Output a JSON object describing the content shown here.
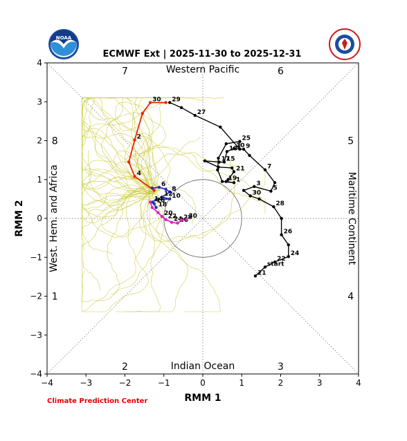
{
  "header": {
    "title": "ECMWF Ext | 2025-11-30 to 2025-12-31",
    "left_logo_text": "NOAA",
    "right_logo_text": "NATIONAL WEATHER SERVICE"
  },
  "footer": {
    "credit": "Climate Prediction Center"
  },
  "colors": {
    "ensemble": "#c8c832",
    "observed": "#000000",
    "forecast_week1": "#2233aa",
    "forecast_week2": "#e020c0",
    "forecast_week4": "#ee2200"
  },
  "chart_data": {
    "type": "line",
    "title": "ECMWF Ext | 2025-11-30 to 2025-12-31",
    "xlabel": "RMM 1",
    "ylabel": "RMM 2",
    "xlim": [
      -4,
      4
    ],
    "ylim": [
      -4,
      4
    ],
    "xticks": [
      "−4",
      "−3",
      "−2",
      "−1",
      "0",
      "1",
      "2",
      "3",
      "4"
    ],
    "yticks": [
      "−4",
      "−3",
      "−2",
      "−1",
      "0",
      "1",
      "2",
      "3",
      "4"
    ],
    "unit_circle_radius": 1,
    "region_labels": {
      "top": "Western Pacific",
      "bottom": "Indian Ocean",
      "left": "West. Hem. and Africa",
      "right": "Maritime Continent"
    },
    "phase_labels": [
      {
        "label": "1",
        "x": -3.8,
        "y": -2.0
      },
      {
        "label": "2",
        "x": -2.0,
        "y": -3.8
      },
      {
        "label": "3",
        "x": 2.0,
        "y": -3.8
      },
      {
        "label": "4",
        "x": 3.8,
        "y": -2.0
      },
      {
        "label": "5",
        "x": 3.8,
        "y": 2.0
      },
      {
        "label": "6",
        "x": 2.0,
        "y": 3.8
      },
      {
        "label": "7",
        "x": -2.0,
        "y": 3.8
      },
      {
        "label": "8",
        "x": -3.8,
        "y": 2.0
      }
    ],
    "ensemble_members": 51,
    "series": [
      {
        "id": "observed",
        "points": [
          {
            "x": 1.35,
            "y": -1.48,
            "label": "21"
          },
          {
            "x": 1.6,
            "y": -1.25,
            "label": "start"
          },
          {
            "x": 1.85,
            "y": -1.12,
            "label": "22"
          },
          {
            "x": 2.2,
            "y": -0.98,
            "label": "24"
          },
          {
            "x": 2.2,
            "y": -0.68
          },
          {
            "x": 2.02,
            "y": -0.42,
            "label": "26"
          },
          {
            "x": 2.02,
            "y": 0.0
          },
          {
            "x": 1.82,
            "y": 0.3,
            "label": "28"
          },
          {
            "x": 1.45,
            "y": 0.5
          },
          {
            "x": 1.22,
            "y": 0.58,
            "label": "30"
          },
          {
            "x": 1.05,
            "y": 0.72
          },
          {
            "x": 1.32,
            "y": 0.82,
            "label": "3"
          },
          {
            "x": 1.75,
            "y": 0.7,
            "label": "5"
          },
          {
            "x": 1.85,
            "y": 0.92
          },
          {
            "x": 1.6,
            "y": 1.25,
            "label": "7"
          },
          {
            "x": 1.2,
            "y": 1.62
          },
          {
            "x": 1.05,
            "y": 1.78,
            "label": "9"
          },
          {
            "x": 0.8,
            "y": 1.8,
            "label": "10"
          },
          {
            "x": 0.62,
            "y": 1.72,
            "label": "13"
          },
          {
            "x": 0.55,
            "y": 1.45,
            "label": "15"
          },
          {
            "x": 0.42,
            "y": 1.45,
            "label": "17"
          },
          {
            "x": 0.05,
            "y": 1.48
          },
          {
            "x": 0.4,
            "y": 1.32
          },
          {
            "x": 0.75,
            "y": 1.3
          },
          {
            "x": 0.8,
            "y": 1.2,
            "label": "21"
          },
          {
            "x": 0.65,
            "y": 1.0
          },
          {
            "x": 0.6,
            "y": 0.95,
            "label": "19"
          },
          {
            "x": 0.8,
            "y": 0.92,
            "label": "1"
          },
          {
            "x": 0.5,
            "y": 0.95
          },
          {
            "x": 0.38,
            "y": 1.25
          },
          {
            "x": 0.4,
            "y": 1.55
          },
          {
            "x": 0.6,
            "y": 1.92
          },
          {
            "x": 0.95,
            "y": 1.98,
            "label": "25"
          },
          {
            "x": 0.95,
            "y": 1.78
          },
          {
            "x": 0.45,
            "y": 2.35
          },
          {
            "x": -0.2,
            "y": 2.65,
            "label": "27"
          },
          {
            "x": -0.55,
            "y": 2.85
          },
          {
            "x": -0.85,
            "y": 2.98,
            "label": "29"
          }
        ]
      },
      {
        "id": "forecast_week4",
        "points": [
          {
            "x": -1.25,
            "y": 0.72
          },
          {
            "x": -1.75,
            "y": 1.08,
            "label": "4"
          },
          {
            "x": -1.9,
            "y": 1.45
          },
          {
            "x": -1.75,
            "y": 2.02,
            "label": "2"
          },
          {
            "x": -1.55,
            "y": 2.7
          },
          {
            "x": -1.35,
            "y": 2.98,
            "label": "30"
          },
          {
            "x": -0.95,
            "y": 2.98
          }
        ]
      },
      {
        "id": "forecast_week1",
        "points": [
          {
            "x": -1.3,
            "y": 0.78
          },
          {
            "x": -1.12,
            "y": 0.8,
            "label": "6"
          },
          {
            "x": -0.95,
            "y": 0.75
          },
          {
            "x": -0.85,
            "y": 0.68,
            "label": "8"
          },
          {
            "x": -1.05,
            "y": 0.55,
            "label": "12"
          },
          {
            "x": -0.85,
            "y": 0.5,
            "label": "10"
          },
          {
            "x": -1.2,
            "y": 0.48
          },
          {
            "x": -1.3,
            "y": 0.42,
            "label": "14"
          },
          {
            "x": -1.25,
            "y": 0.38,
            "label": "16"
          },
          {
            "x": -1.2,
            "y": 0.28,
            "label": "18"
          }
        ]
      },
      {
        "id": "forecast_week2",
        "points": [
          {
            "x": -1.35,
            "y": 0.42
          },
          {
            "x": -1.3,
            "y": 0.28
          },
          {
            "x": -1.15,
            "y": 0.15
          },
          {
            "x": -1.05,
            "y": 0.05,
            "label": "20"
          },
          {
            "x": -0.95,
            "y": -0.03,
            "label": "22"
          },
          {
            "x": -0.8,
            "y": -0.1,
            "label": "24"
          },
          {
            "x": -0.65,
            "y": -0.12,
            "label": "26"
          },
          {
            "x": -0.55,
            "y": -0.05,
            "label": "28"
          },
          {
            "x": -0.42,
            "y": -0.02,
            "label": "30"
          }
        ]
      }
    ]
  }
}
